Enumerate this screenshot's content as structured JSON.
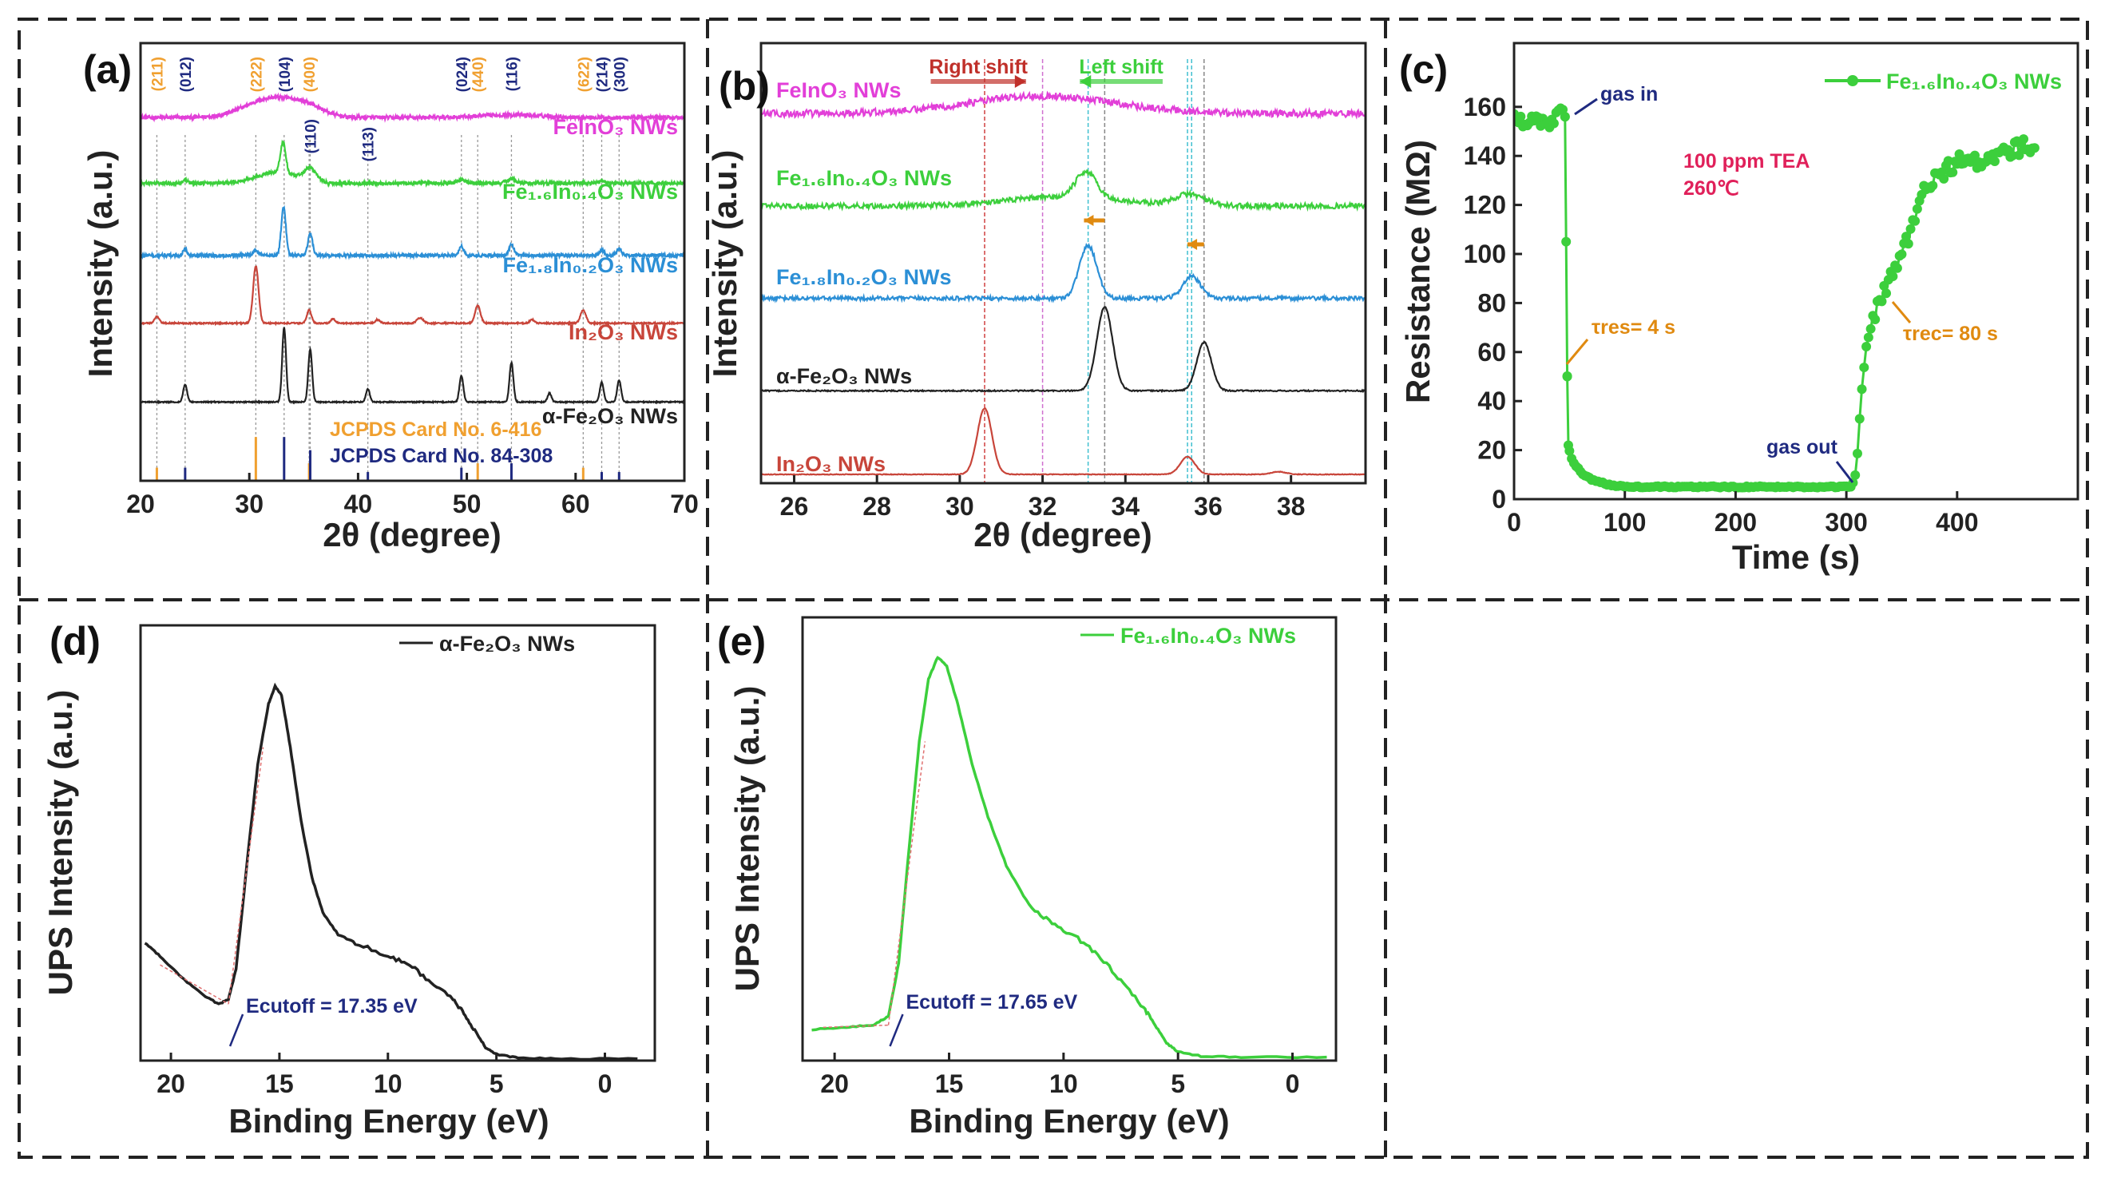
{
  "chart_data": [
    {
      "panel": "a",
      "panel_label": "(a)",
      "type": "line",
      "xlabel": "2θ (degree)",
      "ylabel": "Intensity (a.u.)",
      "xlim": [
        20,
        70
      ],
      "ylim": [
        0,
        100
      ],
      "xticks": [
        20,
        30,
        40,
        50,
        60,
        70
      ],
      "series": [
        {
          "name": "FeInO₃ NWs",
          "color": "#e23fd8",
          "offset": 83,
          "noise": 0.9,
          "peaks": [
            [
              32.2,
              4.5,
              3.5
            ],
            [
              35.5,
              1.5,
              2
            ],
            [
              54,
              0.6,
              4
            ]
          ]
        },
        {
          "name": "Fe₁.₆In₀.₄O₃ NWs",
          "color": "#3ccf3c",
          "offset": 68,
          "noise": 0.8,
          "peaks": [
            [
              33.1,
              7,
              0.35
            ],
            [
              32.5,
              2.5,
              2.5
            ],
            [
              35.6,
              3,
              0.8
            ],
            [
              24.1,
              0.8,
              0.3
            ],
            [
              49.5,
              0.8,
              0.5
            ],
            [
              54.1,
              1,
              0.6
            ],
            [
              62.4,
              0.6,
              0.4
            ]
          ]
        },
        {
          "name": "Fe₁.₈In₀.₂O₃ NWs",
          "color": "#2b8fd6",
          "offset": 51.5,
          "noise": 0.7,
          "peaks": [
            [
              33.15,
              11,
              0.3
            ],
            [
              35.6,
              5,
              0.3
            ],
            [
              24.1,
              1.5,
              0.25
            ],
            [
              49.5,
              2,
              0.3
            ],
            [
              54.1,
              2.5,
              0.3
            ],
            [
              62.4,
              1.2,
              0.3
            ],
            [
              64.0,
              1.5,
              0.3
            ],
            [
              30.6,
              1,
              0.4
            ]
          ]
        },
        {
          "name": "In₂O₃ NWs",
          "color": "#c8453a",
          "offset": 36,
          "noise": 0.3,
          "peaks": [
            [
              30.6,
              13,
              0.35
            ],
            [
              21.5,
              1.5,
              0.3
            ],
            [
              35.5,
              3,
              0.3
            ],
            [
              37.7,
              1,
              0.3
            ],
            [
              41.8,
              0.8,
              0.3
            ],
            [
              45.7,
              1.2,
              0.4
            ],
            [
              51.0,
              4,
              0.35
            ],
            [
              56.0,
              0.8,
              0.3
            ],
            [
              60.7,
              3,
              0.35
            ]
          ]
        },
        {
          "name": "α-Fe₂O₃ NWs",
          "color": "#222222",
          "offset": 18,
          "noise": 0.25,
          "peaks": [
            [
              24.1,
              4,
              0.25
            ],
            [
              33.2,
              17,
              0.25
            ],
            [
              35.6,
              12,
              0.25
            ],
            [
              40.9,
              3,
              0.25
            ],
            [
              49.5,
              6,
              0.25
            ],
            [
              54.1,
              9,
              0.25
            ],
            [
              57.6,
              2,
              0.25
            ],
            [
              62.4,
              4.5,
              0.25
            ],
            [
              64.0,
              5,
              0.25
            ]
          ]
        }
      ],
      "reference_lines": [
        {
          "hkl": "(211)",
          "position": 21.5,
          "card": "In2O3",
          "color": "#f0a030",
          "height": 3
        },
        {
          "hkl": "(012)",
          "position": 24.1,
          "card": "Fe2O3",
          "color": "#1f2a80",
          "height": 3
        },
        {
          "hkl": "(222)",
          "position": 30.6,
          "card": "In2O3",
          "color": "#f0a030",
          "height": 10
        },
        {
          "hkl": "(104)",
          "position": 33.2,
          "card": "Fe2O3",
          "color": "#1f2a80",
          "height": 10
        },
        {
          "hkl": "(400)",
          "position": 35.5,
          "card": "In2O3",
          "color": "#f0a030",
          "height": 4
        },
        {
          "hkl": "(110)",
          "position": 35.6,
          "card": "Fe2O3",
          "color": "#1f2a80",
          "height": 7
        },
        {
          "hkl": "(113)",
          "position": 40.9,
          "card": "Fe2O3",
          "color": "#1f2a80",
          "height": 2
        },
        {
          "hkl": "(024)",
          "position": 49.5,
          "card": "Fe2O3",
          "color": "#1f2a80",
          "height": 3
        },
        {
          "hkl": "(440)",
          "position": 51.0,
          "card": "In2O3",
          "color": "#f0a030",
          "height": 4
        },
        {
          "hkl": "(116)",
          "position": 54.1,
          "card": "Fe2O3",
          "color": "#1f2a80",
          "height": 4
        },
        {
          "hkl": "(622)",
          "position": 60.7,
          "card": "In2O3",
          "color": "#f0a030",
          "height": 3
        },
        {
          "hkl": "(214)",
          "position": 62.4,
          "card": "Fe2O3",
          "color": "#1f2a80",
          "height": 2
        },
        {
          "hkl": "(300)",
          "position": 64.0,
          "card": "Fe2O3",
          "color": "#1f2a80",
          "height": 2
        }
      ],
      "reference_cards": [
        {
          "label": "JCPDS Card No. 6-416",
          "color": "#f0a030"
        },
        {
          "label": "JCPDS Card No. 84-308",
          "color": "#1f2a80"
        }
      ]
    },
    {
      "panel": "b",
      "panel_label": "(b)",
      "type": "line",
      "xlabel": "2θ (degree)",
      "ylabel": "Intensity (a.u.)",
      "xlim": [
        25.2,
        39.8
      ],
      "ylim": [
        0,
        100
      ],
      "xticks": [
        26,
        28,
        30,
        32,
        34,
        36,
        38
      ],
      "series": [
        {
          "name": "FeInO₃ NWs",
          "color": "#e23fd8",
          "offset": 84,
          "noise": 1.6,
          "peaks": [
            [
              32,
              4,
              2.5
            ]
          ]
        },
        {
          "name": "Fe₁.₆In₀.₄O₃ NWs",
          "color": "#3ccf3c",
          "offset": 63,
          "noise": 1.2,
          "peaks": [
            [
              33.05,
              6,
              0.35
            ],
            [
              32.5,
              2,
              2
            ],
            [
              35.55,
              2.5,
              0.5
            ]
          ]
        },
        {
          "name": "Fe₁.₈In₀.₂O₃ NWs",
          "color": "#2b8fd6",
          "offset": 42,
          "noise": 0.9,
          "peaks": [
            [
              33.1,
              12,
              0.3
            ],
            [
              35.6,
              5,
              0.3
            ]
          ]
        },
        {
          "name": "α-Fe₂O₃ NWs",
          "color": "#222222",
          "offset": 21,
          "noise": 0.3,
          "peaks": [
            [
              33.5,
              19,
              0.27
            ],
            [
              35.9,
              11,
              0.25
            ]
          ]
        },
        {
          "name": "In₂O₃ NWs",
          "color": "#c8453a",
          "offset": 2,
          "noise": 0.15,
          "peaks": [
            [
              30.6,
              15,
              0.25
            ],
            [
              35.5,
              4,
              0.25
            ],
            [
              37.7,
              0.6,
              0.25
            ]
          ]
        }
      ],
      "vertical_lines": [
        {
          "x": 30.6,
          "color": "#d04040"
        },
        {
          "x": 32.0,
          "color": "#d070d0"
        },
        {
          "x": 33.1,
          "color": "#40c0d0"
        },
        {
          "x": 33.5,
          "color": "#888888"
        },
        {
          "x": 35.5,
          "color": "#40c0d0"
        },
        {
          "x": 35.6,
          "color": "#40c0d0"
        },
        {
          "x": 35.9,
          "color": "#888888"
        }
      ],
      "shift_annotations": [
        {
          "label": "Right shift",
          "from": 29.3,
          "to": 31.6,
          "color": "#c0302a"
        },
        {
          "label": "Left shift",
          "from": 34.9,
          "to": 32.9,
          "color": "#3ccf3c"
        }
      ],
      "peak_shift_arrows": [
        {
          "from": 33.5,
          "to": 33.0,
          "color": "#e08a10"
        },
        {
          "from": 35.9,
          "to": 35.5,
          "color": "#e08a10"
        }
      ]
    },
    {
      "panel": "c",
      "panel_label": "(c)",
      "type": "line",
      "xlabel": "Time (s)",
      "ylabel": "Resistance (MΩ)",
      "xlim": [
        0,
        509
      ],
      "ylim": [
        0,
        186
      ],
      "xticks": [
        0,
        100,
        200,
        300,
        400
      ],
      "yticks": [
        0,
        20,
        40,
        60,
        80,
        100,
        120,
        140,
        160
      ],
      "series": [
        {
          "name": "Fe₁.₆In₀.₄O₃ NWs",
          "color": "#3ccf3c",
          "points": [
            [
              0,
              155
            ],
            [
              10,
              153
            ],
            [
              20,
              156
            ],
            [
              30,
              151
            ],
            [
              40,
              157
            ],
            [
              44,
              161
            ],
            [
              46,
              156
            ],
            [
              47,
              105
            ],
            [
              48,
              50
            ],
            [
              49,
              22
            ],
            [
              51,
              17
            ],
            [
              60,
              11
            ],
            [
              70,
              8
            ],
            [
              85,
              6
            ],
            [
              100,
              5
            ],
            [
              200,
              5
            ],
            [
              305,
              5
            ],
            [
              307,
              8
            ],
            [
              309,
              12
            ],
            [
              311,
              25
            ],
            [
              313,
              40
            ],
            [
              315,
              50
            ],
            [
              318,
              62
            ],
            [
              322,
              70
            ],
            [
              330,
              80
            ],
            [
              340,
              90
            ],
            [
              350,
              100
            ],
            [
              360,
              112
            ],
            [
              370,
              125
            ],
            [
              385,
              133
            ],
            [
              400,
              138
            ],
            [
              420,
              137
            ],
            [
              440,
              141
            ],
            [
              460,
              144
            ],
            [
              470,
              143
            ]
          ]
        }
      ],
      "annotations": {
        "gas_in": "gas in",
        "gas_out": "gas out",
        "condition_1": "100 ppm TEA",
        "condition_2": "260℃",
        "t_res": "τres= 4 s",
        "t_rec": "τrec= 80 s"
      }
    },
    {
      "panel": "d",
      "panel_label": "(d)",
      "type": "line",
      "xlabel": "Binding Energy (eV)",
      "ylabel": "UPS Intensity (a.u.)",
      "xlim": [
        21.4,
        -2.3
      ],
      "ylim": [
        0,
        100
      ],
      "xticks": [
        20,
        15,
        10,
        5,
        0
      ],
      "series": [
        {
          "name": "α-Fe₂O₃ NWs",
          "color": "#222222",
          "points": [
            [
              21.2,
              27
            ],
            [
              20.5,
              24
            ],
            [
              19.5,
              19
            ],
            [
              18.5,
              15
            ],
            [
              17.8,
              13
            ],
            [
              17.35,
              14
            ],
            [
              17,
              21
            ],
            [
              16.5,
              45
            ],
            [
              16,
              68
            ],
            [
              15.5,
              82
            ],
            [
              15.2,
              86
            ],
            [
              14.9,
              84
            ],
            [
              14.5,
              72
            ],
            [
              14,
              55
            ],
            [
              13.5,
              42
            ],
            [
              13,
              34
            ],
            [
              12.3,
              29
            ],
            [
              11.5,
              27
            ],
            [
              10,
              24
            ],
            [
              9,
              22
            ],
            [
              8,
              18
            ],
            [
              7,
              14
            ],
            [
              6.5,
              11
            ],
            [
              6,
              7
            ],
            [
              5.5,
              3
            ],
            [
              5,
              1.5
            ],
            [
              4,
              0.6
            ],
            [
              2,
              0.4
            ],
            [
              -1.5,
              0.4
            ]
          ]
        }
      ],
      "cutoff_label": "Ecutoff = 17.35 eV",
      "cutoff_value": 17.35
    },
    {
      "panel": "e",
      "panel_label": "(e)",
      "type": "line",
      "xlabel": "Binding Energy (eV)",
      "ylabel": "UPS Intensity (a.u.)",
      "xlim": [
        21.4,
        -1.9
      ],
      "ylim": [
        0,
        100
      ],
      "xticks": [
        20,
        15,
        10,
        5,
        0
      ],
      "series": [
        {
          "name": "Fe₁.₆In₀.₄O₃ NWs",
          "color": "#3ccf3c",
          "points": [
            [
              21,
              7
            ],
            [
              19.5,
              7.5
            ],
            [
              18.3,
              8
            ],
            [
              17.65,
              10
            ],
            [
              17.2,
              22
            ],
            [
              16.8,
              45
            ],
            [
              16.3,
              72
            ],
            [
              15.9,
              86
            ],
            [
              15.5,
              91
            ],
            [
              15.1,
              89
            ],
            [
              14.6,
              80
            ],
            [
              14,
              67
            ],
            [
              13.3,
              55
            ],
            [
              12.5,
              44
            ],
            [
              11.5,
              35
            ],
            [
              10.5,
              31
            ],
            [
              9.5,
              28
            ],
            [
              8.5,
              24
            ],
            [
              7.5,
              18
            ],
            [
              6.5,
              12
            ],
            [
              6,
              8
            ],
            [
              5.5,
              4
            ],
            [
              5,
              2
            ],
            [
              4,
              1
            ],
            [
              2,
              0.8
            ],
            [
              -1.5,
              0.8
            ]
          ]
        }
      ],
      "cutoff_label": "Ecutoff = 17.65 eV",
      "cutoff_value": 17.65
    }
  ]
}
